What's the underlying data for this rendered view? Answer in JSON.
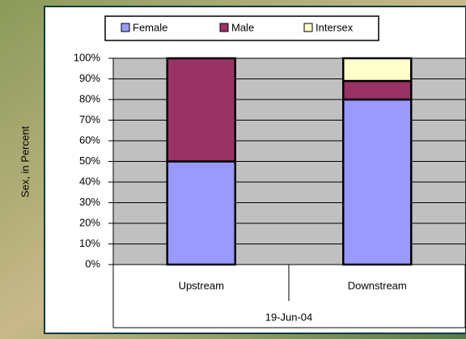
{
  "chart_data": {
    "type": "stacked_bar",
    "categories": [
      "Upstream",
      "Downstream"
    ],
    "xlabel": "19-Jun-04",
    "ylabel": "Sex, in Percent",
    "series": [
      {
        "name": "Female",
        "color": "#9999ff",
        "values": [
          50,
          80
        ]
      },
      {
        "name": "Male",
        "color": "#993366",
        "values": [
          50,
          9
        ]
      },
      {
        "name": "Intersex",
        "color": "#ffffcc",
        "values": [
          0,
          11
        ]
      }
    ],
    "ylim": [
      0,
      100
    ],
    "yticks": [
      {
        "value": 0,
        "label": "0%"
      },
      {
        "value": 10,
        "label": "10%"
      },
      {
        "value": 20,
        "label": "20%"
      },
      {
        "value": 30,
        "label": "30%"
      },
      {
        "value": 40,
        "label": "40%"
      },
      {
        "value": 50,
        "label": "50%"
      },
      {
        "value": 60,
        "label": "60%"
      },
      {
        "value": 70,
        "label": "70%"
      },
      {
        "value": 80,
        "label": "80%"
      },
      {
        "value": 90,
        "label": "90%"
      },
      {
        "value": 100,
        "label": "100%"
      }
    ],
    "grid": true,
    "legend": "top"
  }
}
